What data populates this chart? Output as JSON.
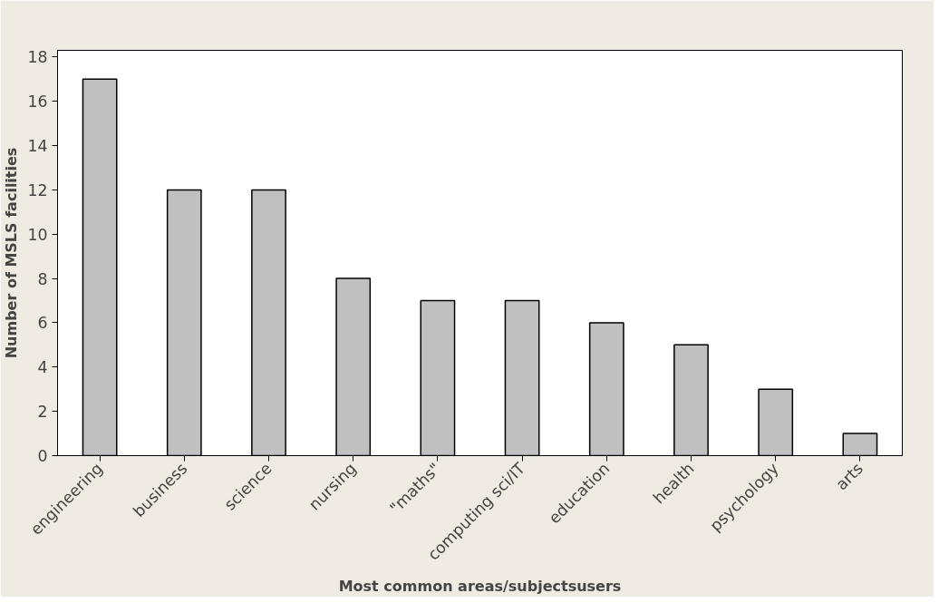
{
  "chart_data": {
    "type": "bar",
    "xlabel": "Most common areas/subjectsusers",
    "ylabel": "Number of MSLS facilities",
    "categories": [
      "engineering",
      "business",
      "science",
      "nursing",
      "\"maths\"",
      "computing sci/IT",
      "education",
      "health",
      "psychology",
      "arts"
    ],
    "values": [
      17,
      12,
      12,
      8,
      7,
      7,
      6,
      5,
      3,
      1
    ],
    "color": "#c0c0c0",
    "ylim": [
      0,
      18.3
    ],
    "yticks": [
      0,
      2,
      4,
      6,
      8,
      10,
      12,
      14,
      16,
      18
    ],
    "grid": false
  }
}
